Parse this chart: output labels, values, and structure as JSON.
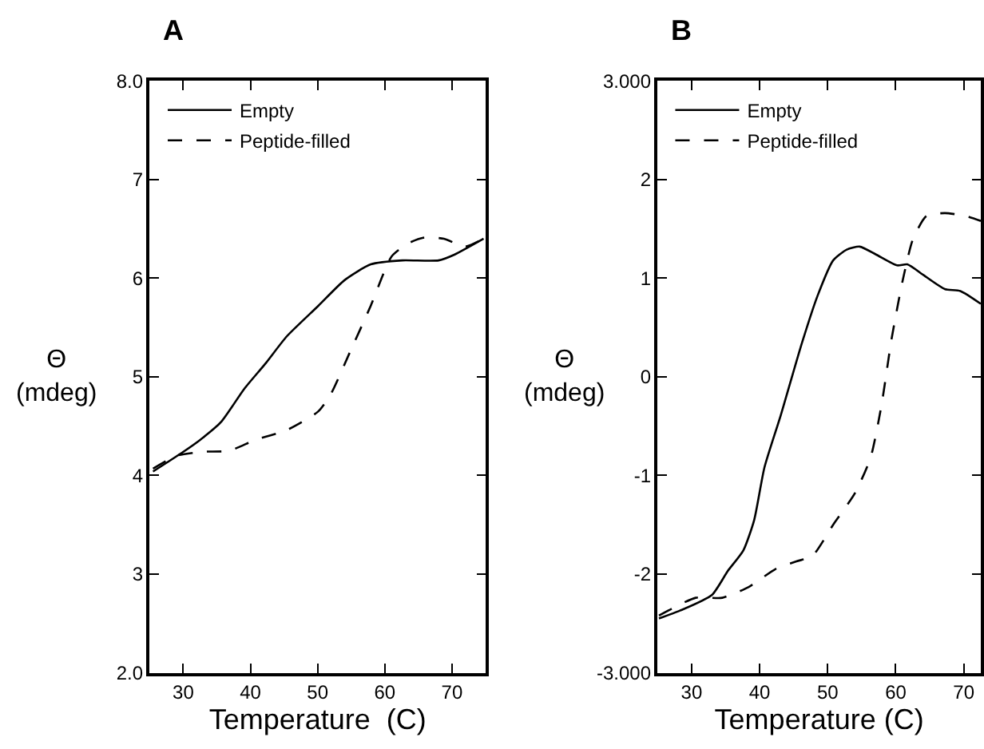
{
  "chart_data": [
    {
      "type": "line",
      "title": "A",
      "xlabel": "Temperature  (C)",
      "ylabel": "Θ\n(mdeg)",
      "xlim": [
        25,
        75
      ],
      "xticks": [
        30,
        40,
        50,
        60,
        70
      ],
      "ylim": [
        2,
        8
      ],
      "yticks": [
        {
          "value": 2,
          "label": "2.0"
        },
        3,
        4,
        5,
        6,
        7,
        {
          "value": 8,
          "label": "8.0"
        }
      ],
      "legend": "top left",
      "marker": "none",
      "series": [
        {
          "name": "Empty",
          "color": "#000000",
          "line_style": "solid",
          "x": [
            25.5,
            29.8,
            32.5,
            35.6,
            39.1,
            42.3,
            45.4,
            50.1,
            54,
            57.9,
            62.6,
            68,
            70.4,
            74.7
          ],
          "values": [
            4.04,
            4.23,
            4.36,
            4.54,
            4.88,
            5.14,
            5.41,
            5.72,
            5.98,
            6.14,
            6.18,
            6.18,
            6.24,
            6.4
          ]
        },
        {
          "name": "Peptide-filled",
          "color": "#000000",
          "line_style": "dashed",
          "x": [
            25.5,
            29,
            32.9,
            36.8,
            40.7,
            45.4,
            50.1,
            52,
            54.8,
            57.9,
            61,
            63.4,
            65.7,
            68.8,
            71.9,
            74.7
          ],
          "values": [
            4.07,
            4.2,
            4.24,
            4.25,
            4.36,
            4.46,
            4.65,
            4.83,
            5.25,
            5.72,
            6.22,
            6.35,
            6.41,
            6.4,
            6.32,
            6.4
          ]
        }
      ]
    },
    {
      "type": "line",
      "title": "B",
      "xlabel": "Temperature (C)",
      "ylabel": "Θ\n(mdeg)",
      "xlim": [
        25,
        72.5
      ],
      "xticks": [
        30,
        40,
        50,
        60,
        70
      ],
      "ylim": [
        -3,
        3
      ],
      "yticks": [
        {
          "value": -3,
          "label": "-3.000"
        },
        -2,
        -1,
        0,
        1,
        2,
        {
          "value": 3,
          "label": "3.000"
        }
      ],
      "legend": "top left",
      "marker": "none",
      "series": [
        {
          "name": "Empty",
          "color": "#000000",
          "line_style": "solid",
          "x": [
            25.2,
            28.3,
            33,
            35.3,
            37.6,
            39.2,
            40.7,
            43.1,
            46.2,
            48.5,
            50.8,
            52.8,
            54.7,
            57.1,
            60.2,
            61.7,
            64.1,
            67.2,
            69.5,
            72.5
          ],
          "values": [
            -2.45,
            -2.37,
            -2.21,
            -1.97,
            -1.76,
            -1.45,
            -0.92,
            -0.39,
            0.34,
            0.82,
            1.18,
            1.29,
            1.32,
            1.24,
            1.13,
            1.14,
            1.03,
            0.89,
            0.87,
            0.74
          ]
        },
        {
          "name": "Peptide-filled",
          "color": "#000000",
          "line_style": "dashed",
          "x": [
            25.2,
            30.6,
            34.5,
            38.4,
            42.3,
            45.4,
            47.7,
            50.8,
            54,
            56.3,
            57.9,
            59.4,
            61,
            62.5,
            64.5,
            67.2,
            70.3,
            72.5
          ],
          "values": [
            -2.42,
            -2.24,
            -2.24,
            -2.13,
            -1.95,
            -1.87,
            -1.82,
            -1.5,
            -1.18,
            -0.82,
            -0.29,
            0.39,
            0.97,
            1.39,
            1.63,
            1.66,
            1.63,
            1.58
          ]
        }
      ]
    }
  ]
}
